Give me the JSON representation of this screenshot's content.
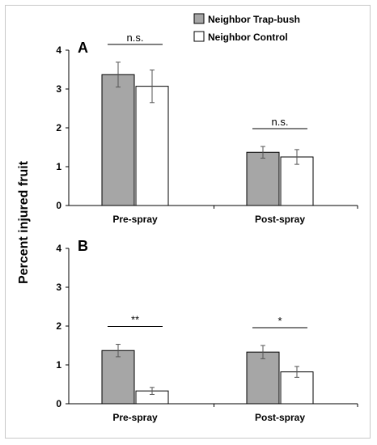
{
  "chart_data": {
    "type": "bar",
    "ylabel": "Percent injured fruit",
    "legend": {
      "placement": "top-right",
      "entries": [
        {
          "name": "Neighbor Trap-bush",
          "color": "#a6a6a6"
        },
        {
          "name": "Neighbor Control",
          "color": "#ffffff"
        }
      ]
    },
    "panels": [
      {
        "letter": "A",
        "categories": [
          "Pre-spray",
          "Post-spray"
        ],
        "ylim": [
          0,
          4
        ],
        "yticks": [
          "0",
          "1",
          "2",
          "3",
          "4"
        ],
        "series": [
          {
            "name": "Neighbor Trap-bush",
            "values": [
              3.37,
              1.37
            ],
            "errors": [
              0.32,
              0.15
            ]
          },
          {
            "name": "Neighbor Control",
            "values": [
              3.07,
              1.25
            ],
            "errors": [
              0.42,
              0.19
            ]
          }
        ],
        "significance": [
          "n.s.",
          "n.s."
        ]
      },
      {
        "letter": "B",
        "categories": [
          "Pre-spray",
          "Post-spray"
        ],
        "ylim": [
          0,
          4
        ],
        "yticks": [
          "0",
          "1",
          "2",
          "3",
          "4"
        ],
        "series": [
          {
            "name": "Neighbor Trap-bush",
            "values": [
              1.37,
              1.33
            ],
            "errors": [
              0.16,
              0.17
            ]
          },
          {
            "name": "Neighbor Control",
            "values": [
              0.33,
              0.82
            ],
            "errors": [
              0.09,
              0.14
            ]
          }
        ],
        "significance": [
          "**",
          "*"
        ]
      }
    ]
  }
}
